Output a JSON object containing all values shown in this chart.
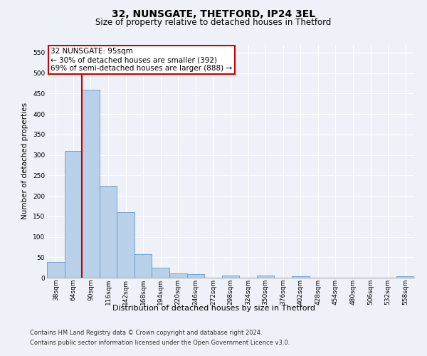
{
  "title1": "32, NUNSGATE, THETFORD, IP24 3EL",
  "title2": "Size of property relative to detached houses in Thetford",
  "xlabel": "Distribution of detached houses by size in Thetford",
  "ylabel": "Number of detached properties",
  "categories": [
    "38sqm",
    "64sqm",
    "90sqm",
    "116sqm",
    "142sqm",
    "168sqm",
    "194sqm",
    "220sqm",
    "246sqm",
    "272sqm",
    "298sqm",
    "324sqm",
    "350sqm",
    "376sqm",
    "402sqm",
    "428sqm",
    "454sqm",
    "480sqm",
    "506sqm",
    "532sqm",
    "558sqm"
  ],
  "values": [
    38,
    310,
    460,
    225,
    160,
    58,
    25,
    10,
    8,
    0,
    5,
    0,
    5,
    0,
    3,
    0,
    0,
    0,
    0,
    0,
    3
  ],
  "bar_color": "#b8d0e8",
  "bar_edge_color": "#6699cc",
  "annotation_text": "32 NUNSGATE: 95sqm\n← 30% of detached houses are smaller (392)\n69% of semi-detached houses are larger (888) →",
  "annotation_box_color": "#ffffff",
  "annotation_box_edge": "#cc0000",
  "ylim_max": 570,
  "yticks": [
    0,
    50,
    100,
    150,
    200,
    250,
    300,
    350,
    400,
    450,
    500,
    550
  ],
  "footer1": "Contains HM Land Registry data © Crown copyright and database right 2024.",
  "footer2": "Contains public sector information licensed under the Open Government Licence v3.0.",
  "bg_color": "#eef2f8",
  "plot_bg_color": "#eef2f8",
  "red_line_color": "#cc0000",
  "grid_color": "#ffffff",
  "title1_fontsize": 10,
  "title2_fontsize": 8.5,
  "xlabel_fontsize": 8,
  "ylabel_fontsize": 7.5,
  "tick_fontsize": 6.5,
  "footer_fontsize": 6.0,
  "annot_fontsize": 7.5
}
